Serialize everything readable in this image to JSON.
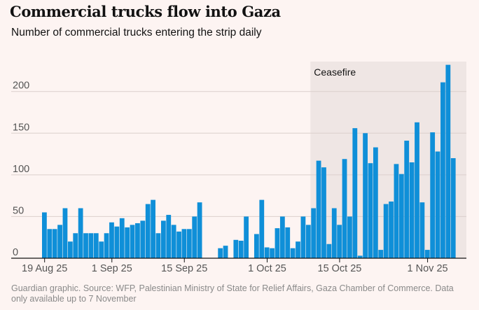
{
  "title": "Commercial trucks flow into Gaza",
  "subtitle": "Number of commercial trucks entering the strip daily",
  "source": "Guardian graphic. Source: WFP, Palestinian Ministry of State for Relief Affairs, Gaza Chamber of Commerce. Data only available up to 7 November",
  "colors": {
    "bar": "#0f8fd8",
    "shade": "#efe6e4",
    "grid": "#dccfcc",
    "axis": "#121212",
    "tick_text": "#555555",
    "background": "#fdf4f2"
  },
  "chart_data": {
    "type": "bar",
    "title": "Commercial trucks flow into Gaza",
    "subtitle": "Number of commercial trucks entering the strip daily",
    "xlabel": "",
    "ylabel": "",
    "ylim": [
      0,
      230
    ],
    "yticks": [
      0,
      50,
      100,
      150,
      200
    ],
    "x_start_date": "2025-08-19",
    "x_ticks": [
      {
        "day": 0,
        "label": "19 Aug 25"
      },
      {
        "day": 13,
        "label": "1 Sep 25"
      },
      {
        "day": 27,
        "label": "15 Sep 25"
      },
      {
        "day": 43,
        "label": "1 Oct 25"
      },
      {
        "day": 57,
        "label": "15 Oct 25"
      },
      {
        "day": 74,
        "label": "1 Nov 25"
      }
    ],
    "shaded_region": {
      "label": "Ceasefire",
      "start_day": 52,
      "end_day": 81
    },
    "x_domain": [
      0,
      81
    ],
    "values": [
      55,
      35,
      35,
      40,
      60,
      20,
      30,
      60,
      30,
      30,
      30,
      20,
      30,
      43,
      38,
      48,
      37,
      40,
      42,
      45,
      65,
      70,
      30,
      45,
      52,
      40,
      32,
      35,
      35,
      50,
      67,
      null,
      null,
      null,
      12,
      15,
      null,
      22,
      21,
      50,
      null,
      29,
      70,
      13,
      12,
      36,
      50,
      37,
      12,
      20,
      50,
      40,
      60,
      117,
      109,
      17,
      60,
      40,
      119,
      50,
      156,
      3,
      150,
      114,
      133,
      10,
      65,
      68,
      113,
      101,
      141,
      115,
      163,
      67,
      10,
      151,
      128,
      211,
      232,
      120
    ]
  }
}
